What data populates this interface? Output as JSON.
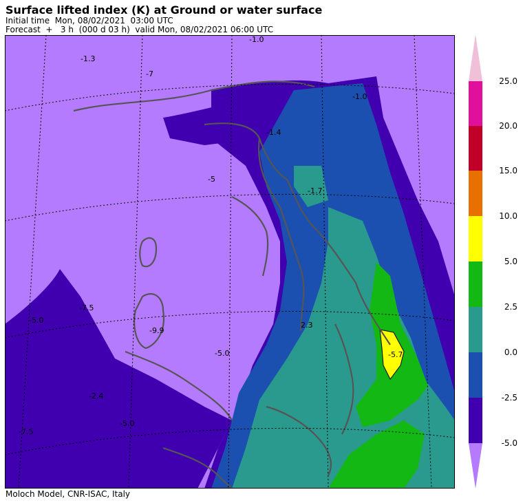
{
  "header": {
    "title": "Surface lifted index (K) at Ground or water surface",
    "initial_time": "Initial time  Mon, 08/02/2021  03:00 UTC",
    "forecast": "Forecast  +   3 h  (000 d 03 h)  valid Mon, 08/02/2021 06:00 UTC"
  },
  "footer": {
    "credit": "Moloch Model, CNR-ISAC, Italy"
  },
  "map": {
    "contour_labels": [
      "-1.0",
      "-1.3",
      "-7",
      "-1.4",
      "-1.7",
      "-5",
      "-1.0",
      "-7.5",
      "-5.0",
      "-9.9",
      "-5.0",
      "-2.4",
      "-5.0",
      "-7.5",
      "2.3",
      "-5.7"
    ],
    "colors": {
      "below_minus5": "#b57bff",
      "minus5_minus2_5": "#4000b0",
      "minus2_5_0": "#1c50b0",
      "zero_2_5": "#2a9a8e",
      "two5_5": "#14b814",
      "five_10": "#ffff00",
      "coastline": "#555555"
    }
  },
  "colorbar": {
    "ticks": [
      "25.0",
      "20.0",
      "15.0",
      "10.0",
      "5.0",
      "2.5",
      "0.0",
      "-2.5",
      "-5.0"
    ],
    "colors": [
      "#f0c0d8",
      "#e0109c",
      "#c00028",
      "#e87000",
      "#ffff00",
      "#14b814",
      "#2a9a8e",
      "#1c50b0",
      "#4000b0",
      "#b57bff"
    ]
  }
}
